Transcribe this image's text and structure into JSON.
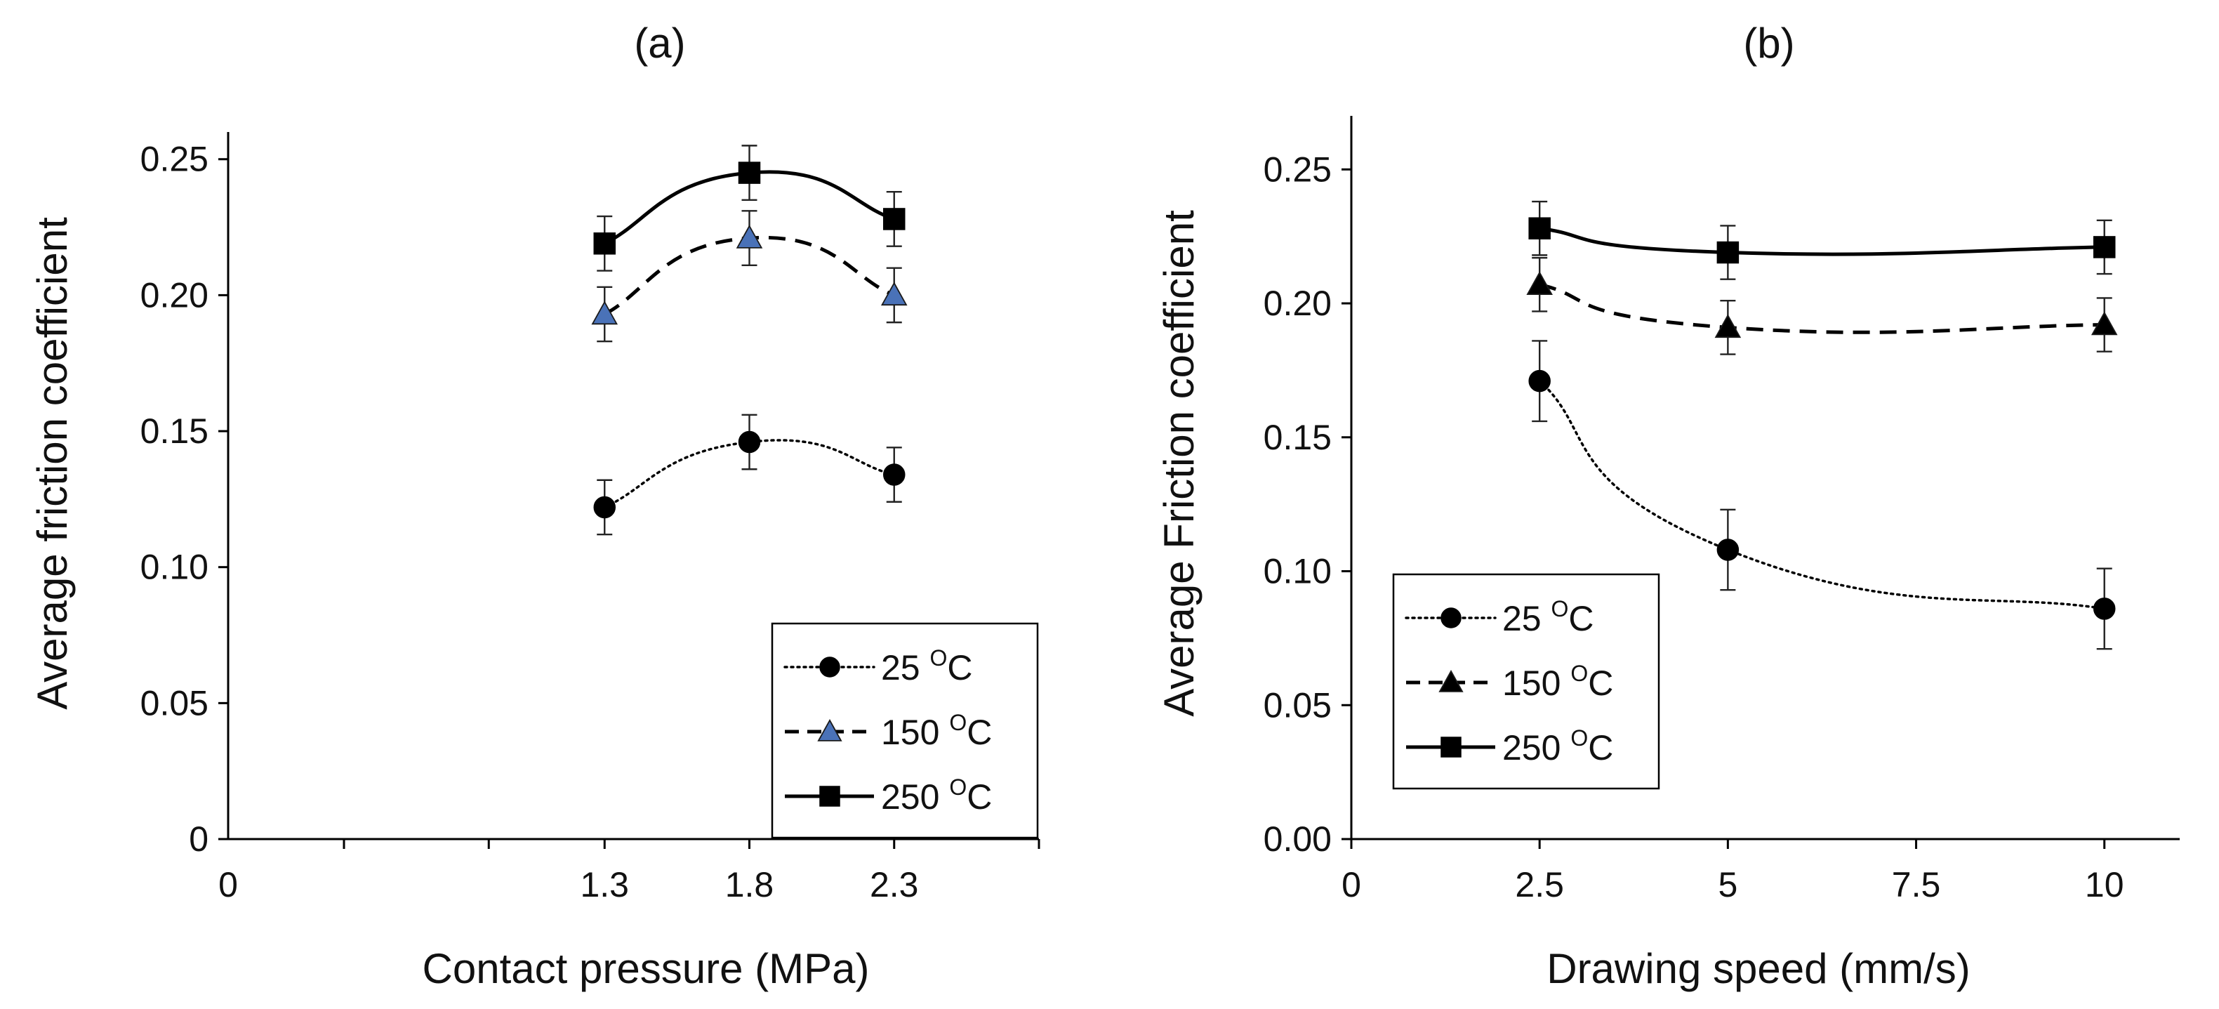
{
  "chart_data": [
    {
      "type": "line",
      "panel_label": "(a)",
      "xlabel": "Contact pressure (MPa)",
      "ylabel": "Average friction coefficient",
      "xlim": [
        0,
        2.8
      ],
      "ylim": [
        0,
        0.26
      ],
      "xticks": [
        0,
        1.3,
        1.8,
        2.3
      ],
      "xtick_labels": [
        "0",
        "1.3",
        "1.8",
        "2.3"
      ],
      "xminor": [
        0.4,
        0.9,
        1.3,
        1.8,
        2.3,
        2.8
      ],
      "yticks": [
        0,
        0.05,
        0.1,
        0.15,
        0.2,
        0.25
      ],
      "ytick_labels": [
        "0",
        "0.05",
        "0.10",
        "0.15",
        "0.20",
        "0.25"
      ],
      "legend_position": "bottom-right",
      "series": [
        {
          "name": "25 °C",
          "label": "25 ",
          "unit": "C",
          "sup": "O",
          "marker": "circle",
          "line": "dotted",
          "fill": "#000000",
          "x": [
            1.3,
            1.8,
            2.3
          ],
          "y": [
            0.122,
            0.146,
            0.134
          ],
          "err": [
            0.01,
            0.01,
            0.01
          ]
        },
        {
          "name": "150 °C",
          "label": "150 ",
          "unit": "C",
          "sup": "O",
          "marker": "triangle",
          "line": "dashed",
          "fill": "#4a72b8",
          "x": [
            1.3,
            1.8,
            2.3
          ],
          "y": [
            0.193,
            0.221,
            0.2
          ],
          "err": [
            0.01,
            0.01,
            0.01
          ]
        },
        {
          "name": "250 °C",
          "label": "250 ",
          "unit": "C",
          "sup": "O",
          "marker": "square",
          "line": "solid",
          "fill": "#000000",
          "x": [
            1.3,
            1.8,
            2.3
          ],
          "y": [
            0.219,
            0.245,
            0.228
          ],
          "err": [
            0.01,
            0.01,
            0.01
          ]
        }
      ]
    },
    {
      "type": "line",
      "panel_label": "(b)",
      "xlabel": "Drawing speed (mm/s)",
      "ylabel": "Average Friction coefficient",
      "xlim": [
        0,
        11
      ],
      "ylim": [
        0,
        0.27
      ],
      "xticks": [
        0,
        2.5,
        5,
        7.5,
        10
      ],
      "xtick_labels": [
        "0",
        "2.5",
        "5",
        "7.5",
        "10"
      ],
      "xminor": [
        0,
        2.5,
        5,
        7.5,
        10
      ],
      "yticks": [
        0,
        0.05,
        0.1,
        0.15,
        0.2,
        0.25
      ],
      "ytick_labels": [
        "0.00",
        "0.05",
        "0.10",
        "0.15",
        "0.20",
        "0.25"
      ],
      "legend_position": "bottom-left",
      "series": [
        {
          "name": "25 °C",
          "label": "25 ",
          "unit": "C",
          "sup": "O",
          "marker": "circle",
          "line": "dotted",
          "fill": "#000000",
          "x": [
            2.5,
            5,
            10
          ],
          "y": [
            0.171,
            0.108,
            0.086
          ],
          "err": [
            0.015,
            0.015,
            0.015
          ]
        },
        {
          "name": "150 °C",
          "label": "150 ",
          "unit": "C",
          "sup": "O",
          "marker": "triangle",
          "line": "dashed",
          "fill": "#000000",
          "x": [
            2.5,
            5,
            10
          ],
          "y": [
            0.207,
            0.191,
            0.192
          ],
          "err": [
            0.01,
            0.01,
            0.01
          ]
        },
        {
          "name": "250 °C",
          "label": "250 ",
          "unit": "C",
          "sup": "O",
          "marker": "square",
          "line": "solid",
          "fill": "#000000",
          "x": [
            2.5,
            5,
            10
          ],
          "y": [
            0.228,
            0.219,
            0.221
          ],
          "err": [
            0.01,
            0.01,
            0.01
          ]
        }
      ]
    }
  ]
}
